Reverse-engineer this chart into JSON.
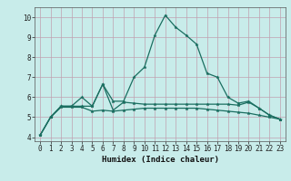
{
  "xlabel": "Humidex (Indice chaleur)",
  "ylabel": "",
  "bg_color": "#c8ecea",
  "grid_color": "#c0a0b0",
  "line_color": "#1a6e60",
  "xlim": [
    -0.5,
    23.5
  ],
  "ylim": [
    3.8,
    10.5
  ],
  "xticks": [
    0,
    1,
    2,
    3,
    4,
    5,
    6,
    7,
    8,
    9,
    10,
    11,
    12,
    13,
    14,
    15,
    16,
    17,
    18,
    19,
    20,
    21,
    22,
    23
  ],
  "yticks": [
    4,
    5,
    6,
    7,
    8,
    9,
    10
  ],
  "line1_x": [
    0,
    1,
    2,
    3,
    4,
    5,
    6,
    7,
    8,
    9,
    10,
    11,
    12,
    13,
    14,
    15,
    16,
    17,
    18,
    19,
    20,
    21,
    22,
    23
  ],
  "line1_y": [
    4.1,
    5.0,
    5.55,
    5.55,
    5.55,
    5.55,
    6.65,
    5.8,
    5.8,
    7.0,
    7.5,
    9.1,
    10.1,
    9.5,
    9.1,
    8.65,
    7.2,
    7.0,
    6.0,
    5.7,
    5.8,
    5.45,
    5.1,
    4.9
  ],
  "line2_x": [
    0,
    1,
    2,
    3,
    4,
    5,
    6,
    7,
    8,
    9,
    10,
    11,
    12,
    13,
    14,
    15,
    16,
    17,
    18,
    19,
    20,
    21,
    22,
    23
  ],
  "line2_y": [
    4.1,
    5.0,
    5.55,
    5.55,
    6.0,
    5.55,
    6.65,
    5.35,
    5.75,
    5.7,
    5.65,
    5.65,
    5.65,
    5.65,
    5.65,
    5.65,
    5.65,
    5.65,
    5.65,
    5.6,
    5.75,
    5.45,
    5.1,
    4.9
  ],
  "line3_x": [
    0,
    1,
    2,
    3,
    4,
    5,
    6,
    7,
    8,
    9,
    10,
    11,
    12,
    13,
    14,
    15,
    16,
    17,
    18,
    19,
    20,
    21,
    22,
    23
  ],
  "line3_y": [
    4.1,
    5.0,
    5.5,
    5.5,
    5.5,
    5.3,
    5.35,
    5.3,
    5.35,
    5.4,
    5.45,
    5.45,
    5.45,
    5.45,
    5.45,
    5.45,
    5.4,
    5.35,
    5.3,
    5.25,
    5.2,
    5.1,
    5.0,
    4.9
  ],
  "marker_size": 2.5,
  "line_width": 0.9,
  "label_fontsize": 6.5,
  "tick_fontsize": 5.5
}
